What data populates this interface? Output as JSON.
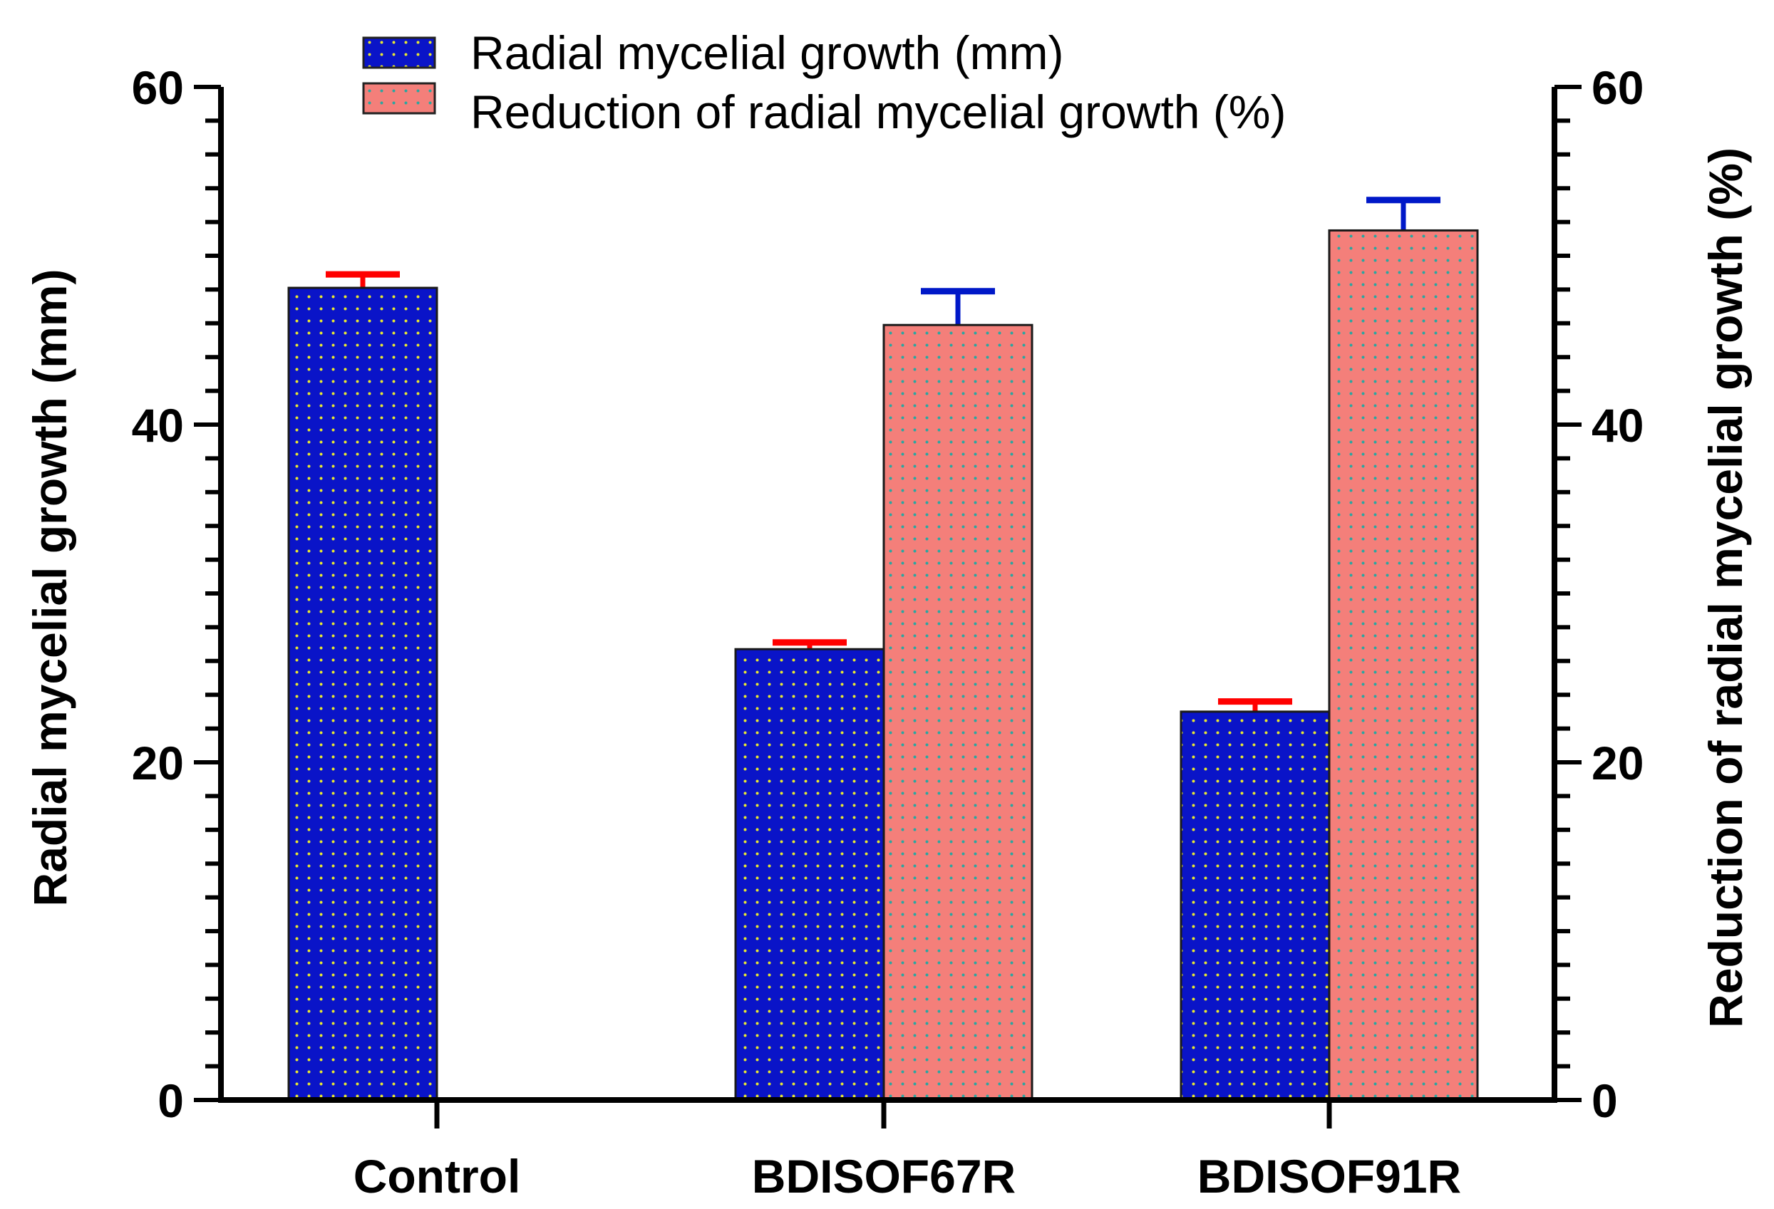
{
  "chart_data": {
    "type": "bar",
    "title": "",
    "xlabel": "",
    "ylabel": "Radial mycelial growth (mm)",
    "ylabel_right": "Reduction of radial mycelial growth (%)",
    "ylim": [
      0,
      60
    ],
    "ylim_right": [
      0,
      60
    ],
    "yticks": [
      "0",
      "20",
      "40",
      "60"
    ],
    "yticks_right": [
      "0",
      "20",
      "40",
      "60"
    ],
    "categories": [
      "Control",
      "BDISOF67R",
      "BDISOF91R"
    ],
    "series": [
      {
        "name": "Radial mycelial growth (mm)",
        "axis": "left",
        "fill": "#0a14c8",
        "dot": "#e8e830",
        "error_color": "#ff0000",
        "values": [
          48.1,
          26.7,
          23.0
        ],
        "errors": [
          0.8,
          0.4,
          0.6
        ]
      },
      {
        "name": "Reduction of radial mycelial growth (%)",
        "axis": "right",
        "fill": "#f47f7a",
        "dot": "#2aa6a0",
        "error_color": "#0018c8",
        "values": [
          null,
          45.9,
          51.5
        ],
        "errors": [
          null,
          2.0,
          1.8
        ]
      }
    ],
    "legend_position": "top-center",
    "grid": false
  }
}
